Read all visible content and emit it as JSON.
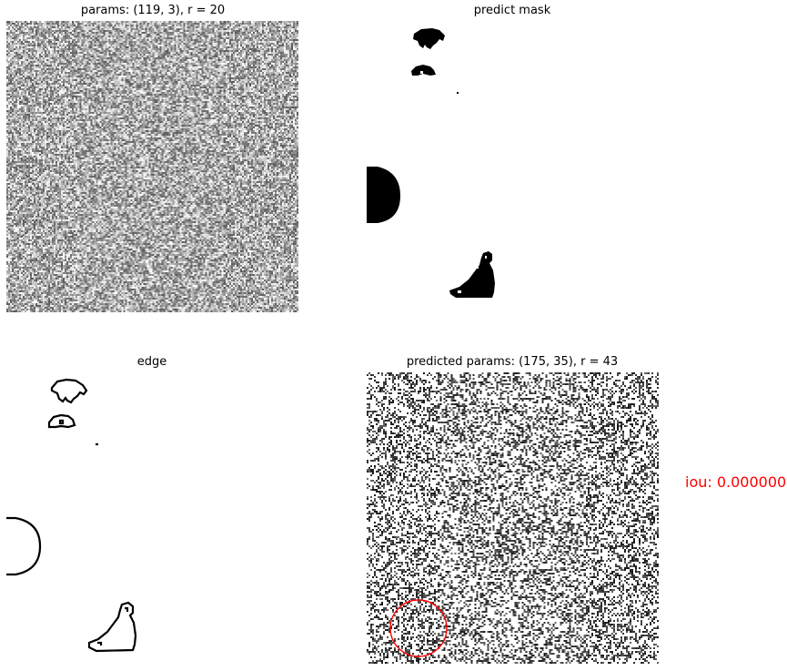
{
  "panels": {
    "params": {
      "title": "params: (119, 3), r = 20"
    },
    "predict_mask": {
      "title": "predict mask"
    },
    "edge": {
      "title": "edge"
    },
    "predicted_params": {
      "title": "predicted params: (175, 35), r = 43"
    }
  },
  "iou": {
    "text": "iou: 0.000000",
    "color": "#ff0000"
  },
  "colors": {
    "circle": "#ff0000",
    "mask": "#000000",
    "background": "#ffffff"
  }
}
